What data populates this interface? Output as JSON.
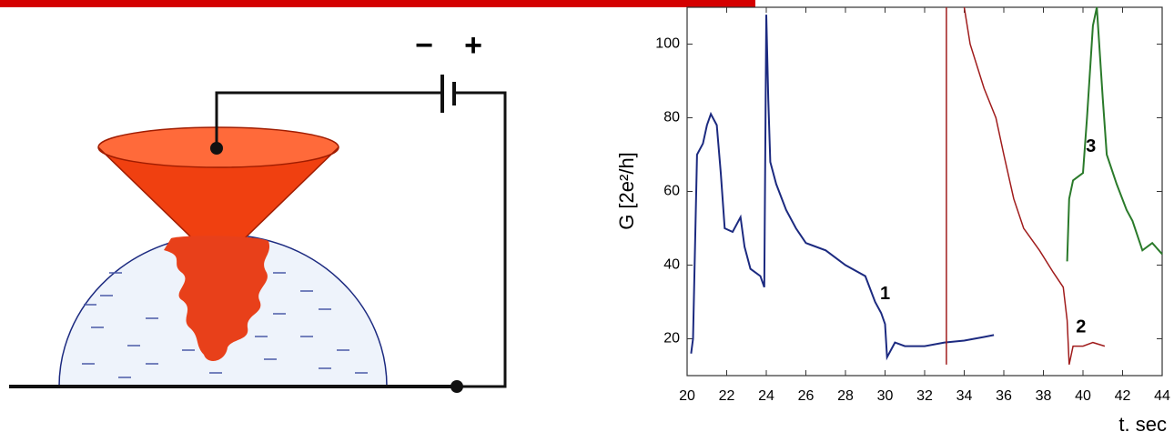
{
  "diagram": {
    "minus": "−",
    "plus": "+"
  },
  "chart_data": {
    "type": "line",
    "x_label": "t. sec",
    "y_label": "G [2e²/h]",
    "xlim": [
      20,
      44
    ],
    "xticks": [
      20,
      22,
      24,
      26,
      28,
      30,
      32,
      34,
      36,
      38,
      40,
      42,
      44
    ],
    "ylim": [
      10,
      110
    ],
    "yticks": [
      20,
      40,
      60,
      80,
      100
    ],
    "series": [
      {
        "name": "1",
        "color": "#1c2a80",
        "x": [
          20.2,
          20.3,
          20.5,
          20.8,
          21.0,
          21.2,
          21.5,
          21.7,
          21.9,
          22.3,
          22.7,
          22.9,
          23.2,
          23.7,
          23.9,
          24.0,
          24.1,
          24.2,
          24.5,
          25,
          25.5,
          26,
          27,
          28,
          29,
          29.5,
          29.8,
          30,
          30.1,
          30.5,
          31,
          32,
          33,
          34,
          35,
          35.5
        ],
        "values": [
          16,
          20,
          70,
          73,
          78,
          81,
          78,
          65,
          50,
          49,
          53,
          45,
          39,
          37,
          34,
          108,
          85,
          68,
          62,
          55,
          50,
          46,
          44,
          40,
          37,
          30,
          27,
          24,
          15,
          19,
          18,
          18,
          19,
          19.5,
          20.5,
          21
        ]
      },
      {
        "name": "2",
        "color": "#a01c1c",
        "x": [
          33.1,
          33.1,
          null,
          34.0,
          34.3,
          35,
          35.6,
          36.0,
          36.5,
          37,
          37.8,
          38.5,
          39,
          39.2,
          39.3,
          39.5,
          40,
          40.5,
          41.1
        ],
        "values": [
          13,
          110,
          null,
          110,
          100,
          88,
          80,
          70,
          58,
          50,
          44,
          38,
          34,
          25,
          13,
          18,
          18,
          19,
          18
        ]
      },
      {
        "name": "3",
        "color": "#2a7a2a",
        "x": [
          39.2,
          39.3,
          39.5,
          40.0,
          40.2,
          40.5,
          40.7,
          41,
          41.2,
          41.7,
          42.2,
          42.5,
          43,
          43.5,
          44
        ],
        "values": [
          41,
          58,
          63,
          65,
          80,
          105,
          110,
          85,
          70,
          62,
          55,
          52,
          44,
          46,
          43
        ]
      }
    ]
  }
}
